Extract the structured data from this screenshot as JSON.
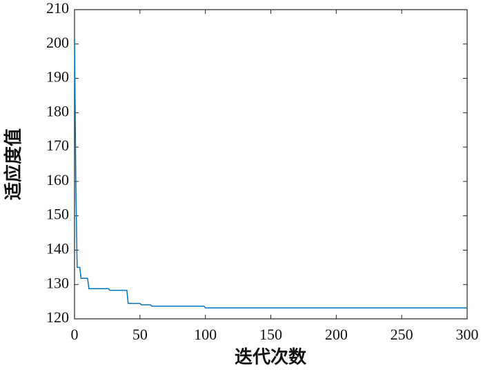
{
  "chart_data": {
    "type": "line",
    "xlabel": "迭代次数",
    "ylabel": "适应度值",
    "x": [
      0,
      1,
      2,
      4,
      5,
      10,
      11,
      26,
      27,
      40,
      41,
      50,
      51,
      58,
      59,
      99,
      100,
      300
    ],
    "series": [
      {
        "color": "#0072bd",
        "values": [
          201.5,
          160,
          135,
          135,
          131.8,
          131.8,
          128.8,
          128.8,
          128.3,
          128.3,
          124.5,
          124.5,
          124.1,
          124.1,
          123.7,
          123.7,
          123.2,
          123.2
        ]
      }
    ],
    "xlim": [
      0,
      300
    ],
    "xticks": [
      0,
      50,
      100,
      150,
      200,
      250,
      300
    ],
    "ylim": [
      120,
      210
    ],
    "yticks": [
      120,
      130,
      140,
      150,
      160,
      170,
      180,
      190,
      200,
      210
    ]
  }
}
